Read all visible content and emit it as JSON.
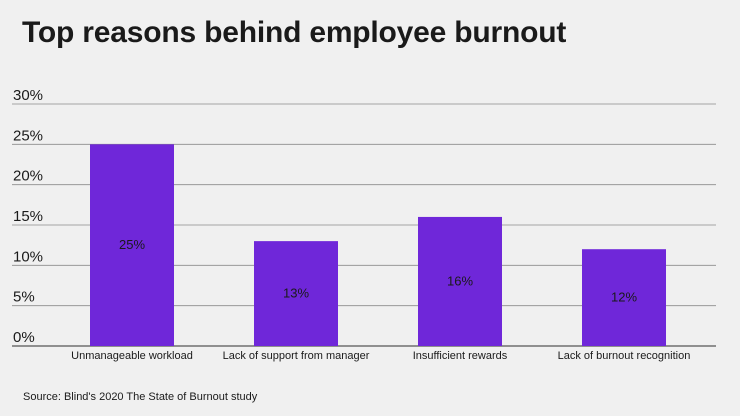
{
  "title": "Top reasons behind employee burnout",
  "source": "Source: Blind's 2020 The State of Burnout study",
  "chart_data": {
    "type": "bar",
    "categories": [
      "Unmanageable workload",
      "Lack of support from manager",
      "Insufficient rewards",
      "Lack of burnout recognition"
    ],
    "values": [
      25,
      13,
      16,
      12
    ],
    "data_labels": [
      "25%",
      "13%",
      "16%",
      "12%"
    ],
    "yticks": [
      0,
      5,
      10,
      15,
      20,
      25,
      30
    ],
    "ytick_labels": [
      "0%",
      "5%",
      "10%",
      "15%",
      "20%",
      "25%",
      "30%"
    ],
    "ylim": [
      0,
      30
    ],
    "bar_color": "#6f27d9",
    "grid": true,
    "legend": "none"
  }
}
